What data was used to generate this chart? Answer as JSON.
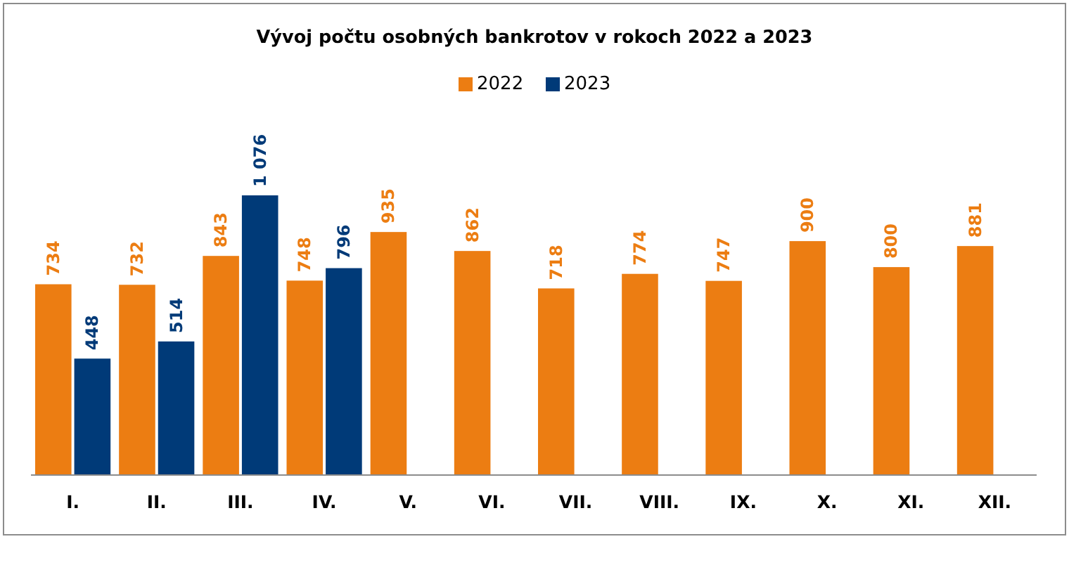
{
  "chart_data": {
    "type": "bar",
    "title": "Vývoj počtu osobných bankrotov v rokoch 2022 a 2023",
    "categories": [
      "I.",
      "II.",
      "III.",
      "IV.",
      "V.",
      "VI.",
      "VII.",
      "VIII.",
      "IX.",
      "X.",
      "XI.",
      "XII."
    ],
    "series": [
      {
        "name": "2022",
        "color": "#ec7d12",
        "values": [
          734,
          732,
          843,
          748,
          935,
          862,
          718,
          774,
          747,
          900,
          800,
          881
        ],
        "value_labels": [
          "734",
          "732",
          "843",
          "748",
          "935",
          "862",
          "718",
          "774",
          "747",
          "900",
          "800",
          "881"
        ]
      },
      {
        "name": "2023",
        "color": "#003a78",
        "values": [
          448,
          514,
          1076,
          796,
          null,
          null,
          null,
          null,
          null,
          null,
          null,
          null
        ],
        "value_labels": [
          "448",
          "514",
          "1 076",
          "796",
          null,
          null,
          null,
          null,
          null,
          null,
          null,
          null
        ]
      }
    ],
    "legend": "top",
    "tick_labels": "x"
  }
}
